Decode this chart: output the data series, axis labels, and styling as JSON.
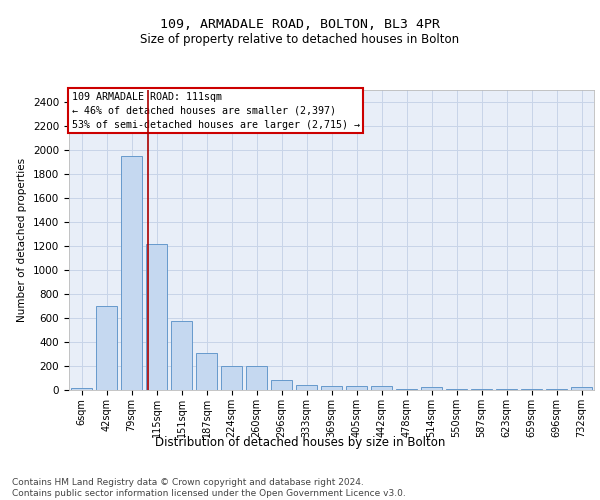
{
  "title1": "109, ARMADALE ROAD, BOLTON, BL3 4PR",
  "title2": "Size of property relative to detached houses in Bolton",
  "xlabel": "Distribution of detached houses by size in Bolton",
  "ylabel": "Number of detached properties",
  "bar_labels": [
    "6sqm",
    "42sqm",
    "79sqm",
    "115sqm",
    "151sqm",
    "187sqm",
    "224sqm",
    "260sqm",
    "296sqm",
    "333sqm",
    "369sqm",
    "405sqm",
    "442sqm",
    "478sqm",
    "514sqm",
    "550sqm",
    "587sqm",
    "623sqm",
    "659sqm",
    "696sqm",
    "732sqm"
  ],
  "bar_values": [
    20,
    700,
    1950,
    1220,
    575,
    305,
    200,
    200,
    80,
    45,
    35,
    35,
    30,
    5,
    25,
    5,
    5,
    5,
    5,
    5,
    25
  ],
  "bar_color": "#c5d8f0",
  "bar_edge_color": "#6699cc",
  "annotation_text": "109 ARMADALE ROAD: 111sqm\n← 46% of detached houses are smaller (2,397)\n53% of semi-detached houses are larger (2,715) →",
  "annotation_box_color": "#cc0000",
  "vline_color": "#aa0000",
  "vline_x": 2.65,
  "ylim": [
    0,
    2500
  ],
  "yticks": [
    0,
    200,
    400,
    600,
    800,
    1000,
    1200,
    1400,
    1600,
    1800,
    2000,
    2200,
    2400
  ],
  "grid_color": "#c8d4e8",
  "background_color": "#e8eef8",
  "footer_text": "Contains HM Land Registry data © Crown copyright and database right 2024.\nContains public sector information licensed under the Open Government Licence v3.0.",
  "title1_fontsize": 9.5,
  "title2_fontsize": 8.5,
  "xlabel_fontsize": 8.5,
  "ylabel_fontsize": 7.5,
  "annotation_fontsize": 7.2,
  "footer_fontsize": 6.5,
  "tick_fontsize": 7,
  "ytick_fontsize": 7.5
}
